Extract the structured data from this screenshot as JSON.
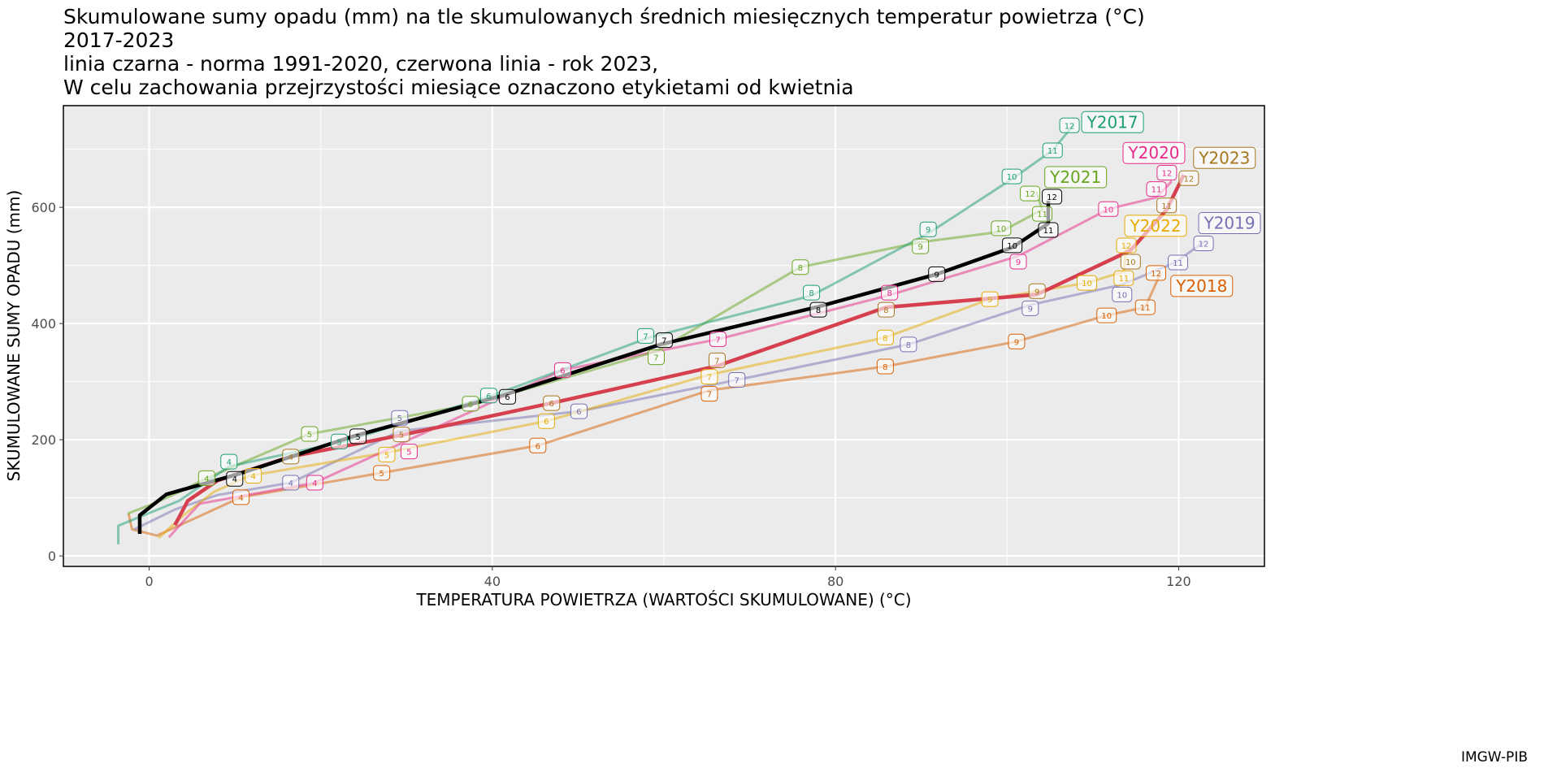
{
  "chart_data": {
    "type": "line",
    "title": [
      "Skumulowane sumy opadu (mm) na tle skumulowanych średnich miesięcznych temperatur powietrza (°C)",
      "2017-2023",
      "linia czarna - norma 1991-2020, czerwona linia - rok 2023,",
      "W celu zachowania przejrzystości miesiące oznaczono etykietami od kwietnia"
    ],
    "xlabel": "TEMPERATURA POWIETRZA (WARTOŚCI SKUMULOWANE) (°C)",
    "ylabel": "SKUMULOWANE SUMY OPADU (mm)",
    "caption": "IMGW-PIB",
    "xlim": [
      -10,
      130
    ],
    "ylim": [
      -18,
      775
    ],
    "xticks": [
      0,
      40,
      80,
      120
    ],
    "yticks": [
      0,
      200,
      400,
      600
    ],
    "grid": true,
    "label_from_month": 4,
    "series": [
      {
        "name": "Y2018",
        "color": "#d95f02",
        "x": [
          -2.4,
          -2.0,
          0.9,
          10.7,
          27.1,
          45.3,
          65.3,
          85.8,
          101.1,
          111.6,
          116.1,
          117.9
        ],
        "y": [
          73,
          46,
          35,
          101,
          143,
          190,
          285,
          326,
          369,
          414,
          428,
          487
        ]
      },
      {
        "name": "Y2019",
        "color": "#7570b3",
        "x": [
          -1.7,
          3.0,
          8.0,
          16.5,
          29.2,
          50.1,
          68.5,
          88.5,
          102.7,
          113.4,
          119.6,
          122.9
        ],
        "y": [
          46,
          80,
          105,
          126,
          215,
          249,
          303,
          364,
          432,
          467,
          505,
          540
        ]
      },
      {
        "name": "Y2022",
        "color": "#e6ab02",
        "x": [
          1.1,
          4.0,
          7.5,
          11.7,
          27.7,
          46.3,
          65.3,
          85.8,
          98.0,
          109.3,
          113.6,
          113.9
        ],
        "y": [
          31,
          70,
          110,
          138,
          178,
          232,
          312,
          376,
          442,
          470,
          489,
          534
        ]
      },
      {
        "name": "Y2020",
        "color": "#e7298a",
        "x": [
          2.3,
          4.0,
          5.9,
          19.3,
          30.3,
          48.2,
          66.3,
          86.3,
          101.3,
          111.8,
          117.4,
          119.2
        ],
        "y": [
          32,
          60,
          90,
          126,
          200,
          320,
          373,
          449,
          516,
          597,
          617,
          645
        ]
      },
      {
        "name": "Y2021",
        "color": "#66a61e",
        "x": [
          -2.5,
          0.5,
          3.5,
          6.7,
          18.7,
          38.1,
          59.1,
          75.9,
          89.9,
          99.3,
          104.1,
          103.4
        ],
        "y": [
          73,
          90,
          110,
          134,
          210,
          262,
          352,
          497,
          540,
          558,
          596,
          627
        ]
      },
      {
        "name": "Y2017",
        "color": "#1b9e77",
        "x": [
          -3.6,
          -3.6,
          3.5,
          9.3,
          22.7,
          40.0,
          58.3,
          77.2,
          90.8,
          100.7,
          105.3,
          107.7
        ],
        "y": [
          20,
          52,
          95,
          154,
          197,
          276,
          376,
          448,
          555,
          650,
          698,
          741
        ]
      },
      {
        "name": "Y2023",
        "color": "#d6404e",
        "label_color": "#a6761d",
        "x": [
          3.0,
          4.5,
          8.0,
          16.5,
          29.4,
          46.9,
          66.2,
          85.9,
          103.5,
          114.4,
          118.6,
          120.6
        ],
        "y": [
          53,
          95,
          130,
          171,
          208,
          263,
          327,
          428,
          450,
          526,
          596,
          656
        ]
      },
      {
        "name": "norma",
        "color": "#000000",
        "x": [
          -1.1,
          -1.1,
          2.0,
          10.4,
          23.8,
          40.7,
          59.6,
          78.0,
          91.8,
          100.6,
          104.8,
          104.8
        ],
        "y": [
          38,
          70,
          106,
          141,
          206,
          274,
          364,
          429,
          485,
          531,
          572,
          611
        ]
      }
    ]
  }
}
